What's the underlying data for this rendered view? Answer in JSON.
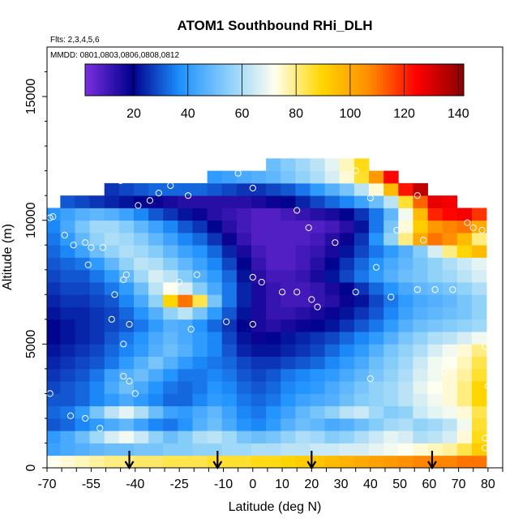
{
  "chart_data": {
    "type": "heatmap",
    "title": "ATOM1 Southbound RHi_DLH",
    "subtitle_flights": "Flts: 2,3,4,5,6",
    "subtitle_dates": "MMDD: 0801,0803,0806,0808,0812",
    "xlabel": "Latitude (deg N)",
    "ylabel": "Altitude (m)",
    "xlim": [
      -70,
      85
    ],
    "ylim": [
      0,
      17000
    ],
    "x_tick_labels": [
      "-70",
      "-55",
      "-40",
      "-25",
      "-10",
      "0",
      "10",
      "20",
      "30",
      "40",
      "50",
      "60",
      "70",
      "80"
    ],
    "x_tick_values": [
      -70,
      -55,
      -40,
      -25,
      -10,
      0,
      10,
      20,
      30,
      40,
      50,
      60,
      70,
      80
    ],
    "y_tick_labels": [
      "0",
      "5000",
      "10000",
      "15000"
    ],
    "y_tick_values": [
      0,
      5000,
      10000,
      15000
    ],
    "colorbar": {
      "range": [
        2,
        142
      ],
      "tick_labels": [
        "20",
        "40",
        "60",
        "80",
        "100",
        "120",
        "140"
      ],
      "tick_values": [
        20,
        40,
        60,
        80,
        100,
        120,
        140
      ],
      "colors": [
        "#7b2fe0",
        "#00008b",
        "#1e90ff",
        "#87cefa",
        "#fffff0",
        "#ffd700",
        "#ff8c00",
        "#ff0000",
        "#8b0000"
      ]
    },
    "arrow_latitudes": [
      -42,
      -12,
      20,
      61
    ],
    "altitude_bins_m": [
      500,
      1000,
      1500,
      2000,
      2500,
      3000,
      3500,
      4000,
      4500,
      5000,
      5500,
      6000,
      6500,
      7000,
      7500,
      8000,
      8500,
      9000,
      9500,
      10000,
      10500,
      11000,
      11500,
      12000,
      12500,
      13000
    ],
    "latitude_bins": [
      -68,
      -63,
      -58,
      -53,
      -48,
      -43,
      -38,
      -33,
      -28,
      -23,
      -18,
      -13,
      -8,
      -3,
      2,
      7,
      12,
      17,
      22,
      27,
      32,
      37,
      42,
      47,
      52,
      57,
      62,
      67,
      72,
      77
    ],
    "rhi_grid": [
      [
        72,
        74,
        76,
        78,
        80,
        80,
        82,
        82,
        84,
        84,
        84,
        86,
        86,
        86,
        88,
        88,
        90,
        92,
        94,
        96,
        98,
        100,
        102,
        104,
        106,
        108,
        108,
        108,
        110,
        110
      ],
      [
        42,
        44,
        46,
        48,
        50,
        50,
        52,
        52,
        54,
        54,
        56,
        56,
        58,
        58,
        60,
        60,
        62,
        62,
        64,
        64,
        66,
        66,
        68,
        70,
        72,
        74,
        76,
        78,
        84,
        92
      ],
      [
        40,
        44,
        50,
        58,
        66,
        70,
        64,
        56,
        50,
        54,
        60,
        62,
        58,
        52,
        50,
        52,
        56,
        60,
        58,
        54,
        56,
        60,
        64,
        68,
        66,
        60,
        62,
        66,
        74,
        88
      ],
      [
        30,
        32,
        36,
        40,
        44,
        48,
        42,
        36,
        34,
        38,
        46,
        50,
        44,
        38,
        36,
        40,
        46,
        50,
        48,
        44,
        46,
        50,
        54,
        58,
        60,
        56,
        58,
        62,
        70,
        86
      ],
      [
        32,
        34,
        40,
        52,
        62,
        68,
        60,
        50,
        42,
        40,
        44,
        48,
        42,
        36,
        34,
        38,
        42,
        48,
        52,
        56,
        62,
        64,
        58,
        54,
        56,
        64,
        68,
        70,
        74,
        84
      ],
      [
        30,
        30,
        32,
        36,
        40,
        44,
        40,
        36,
        32,
        32,
        36,
        40,
        38,
        34,
        32,
        34,
        38,
        42,
        44,
        46,
        50,
        54,
        56,
        58,
        62,
        66,
        70,
        74,
        80,
        90
      ],
      [
        28,
        30,
        32,
        36,
        44,
        50,
        44,
        38,
        34,
        32,
        34,
        38,
        36,
        32,
        30,
        32,
        36,
        38,
        40,
        44,
        48,
        52,
        56,
        58,
        62,
        68,
        72,
        74,
        80,
        90
      ],
      [
        26,
        28,
        30,
        34,
        42,
        46,
        50,
        44,
        38,
        34,
        34,
        36,
        34,
        30,
        28,
        30,
        34,
        36,
        38,
        40,
        44,
        48,
        52,
        56,
        60,
        66,
        70,
        74,
        78,
        86
      ],
      [
        24,
        26,
        28,
        30,
        34,
        40,
        46,
        52,
        46,
        40,
        36,
        34,
        32,
        28,
        26,
        26,
        28,
        30,
        32,
        36,
        40,
        44,
        50,
        54,
        58,
        64,
        70,
        72,
        76,
        84
      ],
      [
        22,
        24,
        26,
        28,
        32,
        36,
        40,
        46,
        50,
        46,
        40,
        36,
        30,
        24,
        22,
        22,
        24,
        26,
        28,
        32,
        36,
        40,
        46,
        52,
        56,
        60,
        66,
        70,
        74,
        80
      ],
      [
        20,
        22,
        24,
        26,
        30,
        34,
        38,
        44,
        48,
        44,
        40,
        36,
        28,
        22,
        18,
        20,
        22,
        24,
        26,
        28,
        32,
        36,
        40,
        46,
        52,
        56,
        60,
        62,
        66,
        70
      ],
      [
        20,
        22,
        24,
        26,
        28,
        30,
        34,
        40,
        46,
        44,
        38,
        32,
        26,
        20,
        16,
        14,
        16,
        18,
        20,
        22,
        26,
        30,
        34,
        40,
        46,
        50,
        52,
        54,
        56,
        58
      ],
      [
        22,
        24,
        24,
        26,
        28,
        32,
        38,
        46,
        56,
        62,
        52,
        40,
        30,
        22,
        16,
        12,
        12,
        14,
        16,
        18,
        22,
        26,
        30,
        36,
        42,
        46,
        48,
        50,
        52,
        56
      ],
      [
        24,
        26,
        26,
        28,
        30,
        36,
        44,
        56,
        90,
        110,
        84,
        52,
        34,
        24,
        16,
        12,
        10,
        10,
        12,
        14,
        18,
        22,
        28,
        34,
        40,
        44,
        46,
        48,
        52,
        56
      ],
      [
        26,
        28,
        28,
        30,
        34,
        40,
        50,
        62,
        72,
        66,
        54,
        44,
        34,
        24,
        16,
        12,
        10,
        10,
        12,
        16,
        20,
        26,
        32,
        38,
        44,
        48,
        50,
        52,
        56,
        60
      ],
      [
        28,
        30,
        30,
        34,
        40,
        48,
        58,
        66,
        62,
        54,
        46,
        40,
        32,
        22,
        14,
        10,
        10,
        12,
        16,
        22,
        28,
        34,
        40,
        46,
        50,
        52,
        56,
        58,
        62,
        66
      ],
      [
        30,
        32,
        34,
        40,
        48,
        56,
        62,
        60,
        54,
        48,
        42,
        36,
        28,
        20,
        12,
        8,
        8,
        10,
        14,
        20,
        26,
        32,
        38,
        44,
        48,
        52,
        56,
        60,
        64,
        68
      ],
      [
        32,
        36,
        42,
        50,
        56,
        60,
        58,
        54,
        48,
        42,
        38,
        32,
        24,
        16,
        10,
        8,
        8,
        10,
        12,
        16,
        22,
        28,
        34,
        40,
        46,
        54,
        66,
        80,
        90,
        96
      ],
      [
        34,
        40,
        48,
        56,
        60,
        58,
        54,
        48,
        42,
        36,
        32,
        26,
        18,
        12,
        8,
        8,
        8,
        8,
        10,
        14,
        18,
        26,
        38,
        56,
        80,
        100,
        110,
        106,
        96,
        80
      ],
      [
        36,
        44,
        52,
        58,
        58,
        54,
        48,
        42,
        36,
        30,
        26,
        20,
        14,
        10,
        8,
        8,
        8,
        8,
        8,
        10,
        14,
        22,
        34,
        52,
        74,
        92,
        104,
        108,
        110,
        100
      ],
      [
        38,
        42,
        46,
        48,
        46,
        42,
        36,
        30,
        26,
        22,
        18,
        14,
        12,
        10,
        8,
        8,
        10,
        12,
        14,
        16,
        20,
        26,
        34,
        48,
        70,
        96,
        120,
        124,
        126,
        118
      ],
      [
        0,
        30,
        28,
        26,
        24,
        22,
        20,
        18,
        16,
        14,
        14,
        14,
        14,
        14,
        16,
        18,
        20,
        24,
        28,
        32,
        36,
        42,
        50,
        62,
        86,
        112,
        128,
        126,
        0,
        0
      ],
      [
        0,
        0,
        0,
        0,
        26,
        28,
        30,
        32,
        32,
        32,
        32,
        30,
        28,
        26,
        26,
        28,
        30,
        34,
        40,
        46,
        52,
        62,
        74,
        96,
        122,
        134,
        0,
        0,
        0,
        0
      ],
      [
        0,
        0,
        0,
        0,
        0,
        0,
        0,
        0,
        0,
        0,
        0,
        40,
        42,
        44,
        46,
        48,
        52,
        56,
        60,
        66,
        74,
        86,
        104,
        124,
        0,
        0,
        0,
        0,
        0,
        0
      ],
      [
        0,
        0,
        0,
        0,
        0,
        0,
        0,
        0,
        0,
        0,
        0,
        0,
        0,
        0,
        0,
        50,
        54,
        58,
        62,
        68,
        76,
        88,
        0,
        0,
        0,
        0,
        0,
        0,
        0,
        0
      ],
      [
        0,
        0,
        0,
        0,
        0,
        0,
        0,
        0,
        0,
        0,
        0,
        0,
        0,
        0,
        0,
        0,
        0,
        0,
        0,
        0,
        0,
        0,
        0,
        0,
        0,
        0,
        0,
        0,
        0,
        0
      ]
    ],
    "sample_points": [
      [
        -68,
        10150
      ],
      [
        -69,
        10100
      ],
      [
        -64,
        9400
      ],
      [
        -61,
        9000
      ],
      [
        -57,
        9100
      ],
      [
        -55,
        8900
      ],
      [
        -51,
        8900
      ],
      [
        -56,
        8200
      ],
      [
        -43,
        7800
      ],
      [
        -44,
        7600
      ],
      [
        -47,
        7000
      ],
      [
        -48,
        6000
      ],
      [
        -42,
        5800
      ],
      [
        -44,
        5000
      ],
      [
        -44,
        3700
      ],
      [
        -42,
        3500
      ],
      [
        -40,
        3000
      ],
      [
        -62,
        2100
      ],
      [
        -57,
        2000
      ],
      [
        -52,
        1600
      ],
      [
        -69,
        3000
      ],
      [
        -45,
        11600
      ],
      [
        -39,
        10600
      ],
      [
        -35,
        10800
      ],
      [
        -32,
        11100
      ],
      [
        -28,
        11400
      ],
      [
        -22,
        11000
      ],
      [
        -25,
        7500
      ],
      [
        -19,
        7800
      ],
      [
        -21,
        5600
      ],
      [
        -9,
        5900
      ],
      [
        0,
        5800
      ],
      [
        -5,
        11900
      ],
      [
        0,
        11300
      ],
      [
        0,
        7700
      ],
      [
        3,
        7500
      ],
      [
        10,
        7100
      ],
      [
        15,
        10400
      ],
      [
        15,
        7100
      ],
      [
        20,
        6800
      ],
      [
        19,
        9700
      ],
      [
        22,
        6500
      ],
      [
        28,
        9100
      ],
      [
        35,
        12000
      ],
      [
        40,
        10900
      ],
      [
        42,
        8100
      ],
      [
        40,
        3600
      ],
      [
        35,
        7100
      ],
      [
        47,
        6900
      ],
      [
        49,
        9600
      ],
      [
        56,
        11000
      ],
      [
        52,
        9700
      ],
      [
        56,
        7200
      ],
      [
        58,
        9200
      ],
      [
        62,
        7200
      ],
      [
        65,
        3900
      ],
      [
        68,
        7200
      ],
      [
        73,
        9900
      ],
      [
        75,
        9700
      ],
      [
        78,
        9600
      ],
      [
        79,
        4900
      ],
      [
        80,
        3300
      ],
      [
        81,
        3000
      ],
      [
        79,
        1200
      ],
      [
        79,
        800
      ]
    ]
  }
}
